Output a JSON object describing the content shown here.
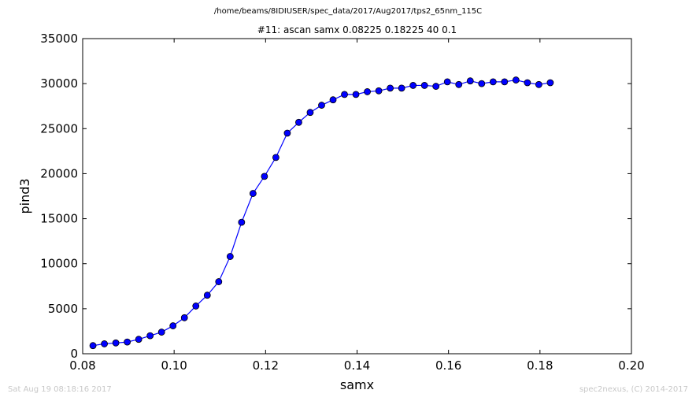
{
  "header": {
    "supertitle": "/home/beams/8IDIUSER/spec_data/2017/Aug2017/tps2_65nm_115C"
  },
  "footer": {
    "timestamp": "Sat Aug 19 08:18:16 2017",
    "credit": "spec2nexus, (C) 2014-2017"
  },
  "chart_data": {
    "type": "line",
    "title": "#11: ascan  samx 0.08225 0.18225  40 0.1",
    "xlabel": "samx",
    "ylabel": "pind3",
    "xlim": [
      0.08,
      0.2
    ],
    "ylim": [
      0,
      35000
    ],
    "xticks": [
      0.08,
      0.1,
      0.12,
      0.14,
      0.16,
      0.18,
      0.2
    ],
    "xtick_labels": [
      "0.08",
      "0.10",
      "0.12",
      "0.14",
      "0.16",
      "0.18",
      "0.20"
    ],
    "yticks": [
      0,
      5000,
      10000,
      15000,
      20000,
      25000,
      30000,
      35000
    ],
    "ytick_labels": [
      "0",
      "5000",
      "10000",
      "15000",
      "20000",
      "25000",
      "30000",
      "35000"
    ],
    "grid": false,
    "colors": {
      "series": "#0000ff",
      "marker_edge": "#000000"
    },
    "series": [
      {
        "marker": "circle",
        "x": [
          0.08225,
          0.08475,
          0.08725,
          0.08975,
          0.09225,
          0.09475,
          0.09725,
          0.09975,
          0.10225,
          0.10475,
          0.10725,
          0.10975,
          0.11225,
          0.11475,
          0.11725,
          0.11975,
          0.12225,
          0.12475,
          0.12725,
          0.12975,
          0.13225,
          0.13475,
          0.13725,
          0.13975,
          0.14225,
          0.14475,
          0.14725,
          0.14975,
          0.15225,
          0.15475,
          0.15725,
          0.15975,
          0.16225,
          0.16475,
          0.16725,
          0.16975,
          0.17225,
          0.17475,
          0.17725,
          0.17975,
          0.18225
        ],
        "y": [
          900,
          1100,
          1200,
          1300,
          1600,
          2000,
          2400,
          3100,
          4000,
          5300,
          6500,
          8000,
          10800,
          14600,
          17800,
          19700,
          21800,
          24500,
          25700,
          26800,
          27600,
          28200,
          28800,
          28800,
          29100,
          29200,
          29500,
          29500,
          29800,
          29800,
          29700,
          30200,
          29900,
          30300,
          30000,
          30200,
          30200,
          30400,
          30100,
          29900,
          30100
        ]
      }
    ]
  }
}
